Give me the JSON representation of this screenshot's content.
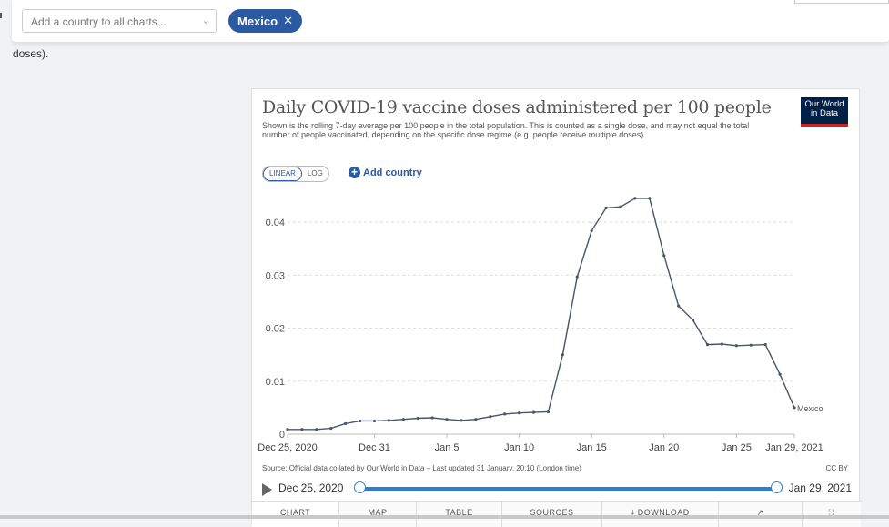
{
  "topbar": {
    "select_placeholder": "Add a country to all charts...",
    "chip_label": "Mexico"
  },
  "page": {
    "doses_text": "doses)."
  },
  "chart_card": {
    "title": "Daily COVID-19 vaccine doses administered per 100 people",
    "subtitle": "Shown is the rolling 7-day average per 100 people in the total population. This is counted as a single dose, and may not equal the total number of people vaccinated, depending on the specific dose regime (e.g. people receive multiple doses).",
    "logo_line1": "Our World",
    "logo_line2": "in Data",
    "scale_linear": "LINEAR",
    "scale_log": "LOG",
    "add_country": "Add country",
    "source": "Source: Official data collated by Our World in Data – Last updated 31 January, 20:10 (London time)",
    "license": "CC BY",
    "timeline_start": "Dec 25, 2020",
    "timeline_end": "Jan 29, 2021",
    "tabs": [
      "CHART",
      "MAP",
      "TABLE",
      "SOURCES",
      "DOWNLOAD",
      "",
      ""
    ]
  },
  "chart_data": {
    "type": "line",
    "title": "Daily COVID-19 vaccine doses administered per 100 people",
    "xlabel": "",
    "ylabel": "",
    "x_tick_labels": [
      "Dec 25, 2020",
      "Dec 31",
      "Jan 5",
      "Jan 10",
      "Jan 15",
      "Jan 20",
      "Jan 25",
      "Jan 29, 2021"
    ],
    "x_tick_days": [
      0,
      6,
      11,
      16,
      21,
      26,
      31,
      35
    ],
    "y_ticks": [
      0,
      0.01,
      0.02,
      0.03,
      0.04
    ],
    "y_tick_labels": [
      "0",
      "0.01",
      "0.02",
      "0.03",
      "0.04"
    ],
    "ylim": [
      0,
      0.045
    ],
    "grid": true,
    "series": [
      {
        "name": "Mexico",
        "color": "#4a5568",
        "values": [
          0.0009,
          0.0009,
          0.0009,
          0.0011,
          0.002,
          0.0025,
          0.0025,
          0.0026,
          0.0028,
          0.003,
          0.0031,
          0.0028,
          0.0026,
          0.0028,
          0.0033,
          0.0038,
          0.004,
          0.0041,
          0.0042,
          0.015,
          0.0297,
          0.0384,
          0.0427,
          0.0429,
          0.0445,
          0.0445,
          0.0337,
          0.0242,
          0.0215,
          0.0169,
          0.017,
          0.0167,
          0.0168,
          0.0169,
          0.0113,
          0.005
        ]
      }
    ]
  }
}
